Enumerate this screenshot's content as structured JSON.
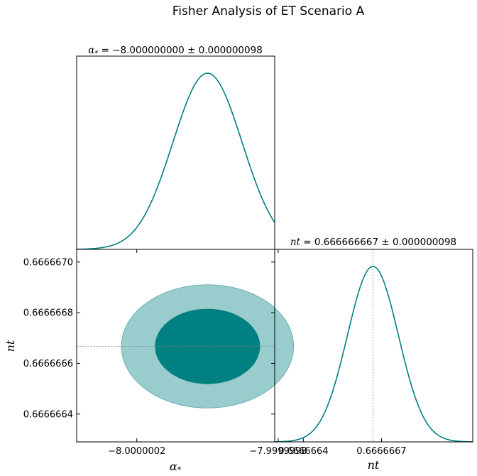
{
  "title": "Fisher Analysis of ET Scenario A",
  "chart_data": [
    {
      "type": "line",
      "panel": "marginal-alpha",
      "title_param": "α",
      "title_sub": "*",
      "title_value": " = −8.000000000 ± 0.000000098",
      "mean": -8.0,
      "sigma": 9.8e-08,
      "xlim": [
        -8.00000037,
        -7.99999981
      ],
      "line_color": "#008080"
    },
    {
      "type": "scatter",
      "panel": "joint-contour",
      "xlabel_main": "α",
      "xlabel_sub": "*",
      "ylabel": "nt",
      "center": [
        -8.0,
        0.666666667
      ],
      "sigma": [
        9.8e-08,
        9.8e-08
      ],
      "contour_levels": [
        "1σ",
        "2σ"
      ],
      "xlim": [
        -8.00000037,
        -7.99999981
      ],
      "ylim": [
        0.66666629,
        0.66666705
      ],
      "x_ticks": [
        "−8.0000002",
        "−7.9999998"
      ],
      "x_tick_values": [
        -8.0000002,
        -7.9999998
      ],
      "y_ticks": [
        "0.6666664",
        "0.6666666",
        "0.6666668",
        "0.6666670"
      ],
      "y_tick_values": [
        0.6666664,
        0.6666666,
        0.6666668,
        0.666667
      ],
      "colors": {
        "inner": "#008080",
        "outer": "#99cccc",
        "edge": "#5aa8a8",
        "ref": "#888888"
      }
    },
    {
      "type": "line",
      "panel": "marginal-nt",
      "title_param": "nt",
      "title_value": " = 0.666666667 ± 0.000000098",
      "mean": 0.666666667,
      "sigma": 9.8e-08,
      "xlim": [
        0.66666629,
        0.66666705
      ],
      "x_ticks": [
        "0.6666664",
        "0.6666667"
      ],
      "x_tick_values": [
        0.6666664,
        0.6666667
      ],
      "xlabel": "nt",
      "line_color": "#008080"
    }
  ]
}
